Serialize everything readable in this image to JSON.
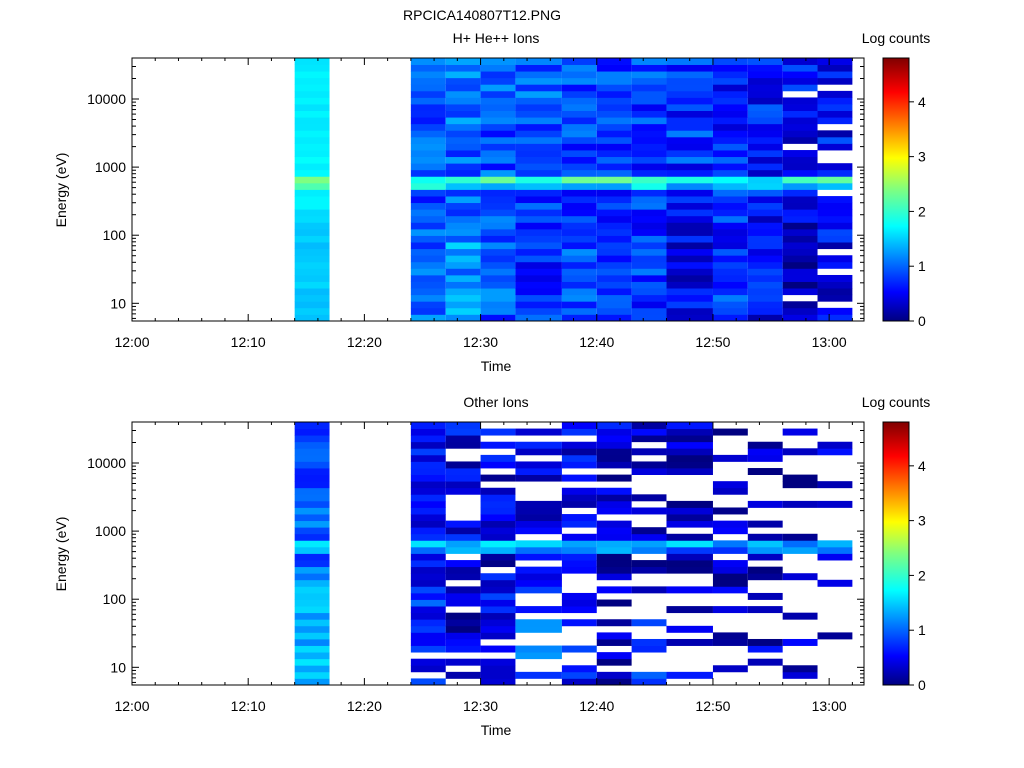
{
  "page": {
    "title": "RPCICA140807T12.PNG"
  },
  "chart_data": [
    {
      "type": "heatmap",
      "title": "H+ He++ Ions",
      "xlabel": "Time",
      "ylabel": "Energy (eV)",
      "colorbar_label": "Log counts",
      "x_scale": "time",
      "y_scale": "log",
      "xlim": [
        "12:00",
        "13:03"
      ],
      "ylim": [
        5.5,
        40000
      ],
      "x_ticks": [
        "12:00",
        "12:10",
        "12:20",
        "12:30",
        "12:40",
        "12:50",
        "13:00"
      ],
      "y_ticks": [
        "10",
        "100",
        "1000",
        "10000"
      ],
      "colorbar_range": [
        0,
        4.8
      ],
      "colorbar_ticks": [
        "0",
        "1",
        "2",
        "3",
        "4"
      ],
      "colormap": "jet",
      "missing_intervals": [
        [
          "12:00",
          "12:14"
        ],
        [
          "12:17",
          "12:24"
        ]
      ],
      "time_bins": [
        [
          "12:14",
          "12:17"
        ],
        [
          "12:24",
          "12:27"
        ],
        [
          "12:27",
          "12:30"
        ],
        [
          "12:30",
          "12:33"
        ],
        [
          "12:33",
          "12:37"
        ],
        [
          "12:37",
          "12:40"
        ],
        [
          "12:40",
          "12:43"
        ],
        [
          "12:43",
          "12:46"
        ],
        [
          "12:46",
          "12:50"
        ],
        [
          "12:50",
          "12:53"
        ],
        [
          "12:53",
          "12:56"
        ],
        [
          "12:56",
          "12:59"
        ],
        [
          "12:59",
          "13:02"
        ]
      ],
      "peak_energy_eV": 600,
      "bins": [
        {
          "time": "12:14",
          "lowE": 1.55,
          "midE": 1.75,
          "highE": 1.72,
          "peak": 2.65,
          "var": 0.08,
          "holes": 0.0
        },
        {
          "time": "12:24",
          "lowE": 1.05,
          "midE": 0.95,
          "highE": 1.1,
          "peak": 2.45,
          "var": 0.35,
          "holes": 0.0
        },
        {
          "time": "12:27",
          "lowE": 1.3,
          "midE": 1.05,
          "highE": 1.15,
          "peak": 2.5,
          "var": 0.35,
          "holes": 0.0
        },
        {
          "time": "12:30",
          "lowE": 1.0,
          "midE": 0.95,
          "highE": 1.05,
          "peak": 2.45,
          "var": 0.35,
          "holes": 0.0
        },
        {
          "time": "12:33",
          "lowE": 0.8,
          "midE": 0.9,
          "highE": 1.0,
          "peak": 2.45,
          "var": 0.35,
          "holes": 0.0
        },
        {
          "time": "12:37",
          "lowE": 0.95,
          "midE": 0.85,
          "highE": 0.95,
          "peak": 2.45,
          "var": 0.35,
          "holes": 0.0
        },
        {
          "time": "12:40",
          "lowE": 0.75,
          "midE": 0.85,
          "highE": 0.9,
          "peak": 2.45,
          "var": 0.35,
          "holes": 0.0
        },
        {
          "time": "12:43",
          "lowE": 0.85,
          "midE": 0.8,
          "highE": 0.9,
          "peak": 2.45,
          "var": 0.35,
          "holes": 0.0
        },
        {
          "time": "12:46",
          "lowE": 0.55,
          "midE": 0.8,
          "highE": 0.8,
          "peak": 2.4,
          "var": 0.4,
          "holes": 0.0
        },
        {
          "time": "12:50",
          "lowE": 0.8,
          "midE": 0.75,
          "highE": 0.75,
          "peak": 2.4,
          "var": 0.4,
          "holes": 0.0
        },
        {
          "time": "12:53",
          "lowE": 0.6,
          "midE": 0.65,
          "highE": 0.7,
          "peak": 2.35,
          "var": 0.4,
          "holes": 0.0
        },
        {
          "time": "12:56",
          "lowE": 0.3,
          "midE": 0.6,
          "highE": 0.6,
          "peak": 2.3,
          "var": 0.4,
          "holes": 0.08
        },
        {
          "time": "12:59",
          "lowE": 0.6,
          "midE": 0.55,
          "highE": 0.5,
          "peak": 2.3,
          "var": 0.45,
          "holes": 0.18
        }
      ]
    },
    {
      "type": "heatmap",
      "title": "Other Ions",
      "xlabel": "Time",
      "ylabel": "Energy (eV)",
      "colorbar_label": "Log counts",
      "x_scale": "time",
      "y_scale": "log",
      "xlim": [
        "12:00",
        "13:03"
      ],
      "ylim": [
        5.5,
        40000
      ],
      "x_ticks": [
        "12:00",
        "12:10",
        "12:20",
        "12:30",
        "12:40",
        "12:50",
        "13:00"
      ],
      "y_ticks": [
        "10",
        "100",
        "1000",
        "10000"
      ],
      "colorbar_range": [
        0,
        4.8
      ],
      "colorbar_ticks": [
        "0",
        "1",
        "2",
        "3",
        "4"
      ],
      "colormap": "jet",
      "missing_intervals": [
        [
          "12:00",
          "12:14"
        ],
        [
          "12:17",
          "12:24"
        ]
      ],
      "time_bins": [
        [
          "12:14",
          "12:17"
        ],
        [
          "12:24",
          "12:27"
        ],
        [
          "12:27",
          "12:30"
        ],
        [
          "12:30",
          "12:33"
        ],
        [
          "12:33",
          "12:37"
        ],
        [
          "12:37",
          "12:40"
        ],
        [
          "12:40",
          "12:43"
        ],
        [
          "12:43",
          "12:46"
        ],
        [
          "12:46",
          "12:50"
        ],
        [
          "12:50",
          "12:53"
        ],
        [
          "12:53",
          "12:56"
        ],
        [
          "12:56",
          "12:59"
        ],
        [
          "12:59",
          "13:02"
        ]
      ],
      "peak_energy_eV": 600,
      "bins": [
        {
          "time": "12:14",
          "lowE": 1.45,
          "midE": 1.05,
          "highE": 0.95,
          "peak": 2.2,
          "var": 0.3,
          "holes": 0.0
        },
        {
          "time": "12:24",
          "lowE": 0.75,
          "midE": 0.45,
          "highE": 0.55,
          "peak": 2.0,
          "var": 0.4,
          "holes": 0.22
        },
        {
          "time": "12:27",
          "lowE": 0.3,
          "midE": 0.45,
          "highE": 0.5,
          "peak": 2.0,
          "var": 0.4,
          "holes": 0.25
        },
        {
          "time": "12:30",
          "lowE": 0.65,
          "midE": 0.4,
          "highE": 0.45,
          "peak": 1.95,
          "var": 0.4,
          "holes": 0.22
        },
        {
          "time": "12:33",
          "lowE": 1.05,
          "midE": 0.45,
          "highE": 0.45,
          "peak": 1.95,
          "var": 0.4,
          "holes": 0.3
        },
        {
          "time": "12:37",
          "lowE": 0.7,
          "midE": 0.4,
          "highE": 0.45,
          "peak": 1.9,
          "var": 0.4,
          "holes": 0.3
        },
        {
          "time": "12:40",
          "lowE": 0.25,
          "midE": 0.35,
          "highE": 0.4,
          "peak": 1.85,
          "var": 0.4,
          "holes": 0.3
        },
        {
          "time": "12:43",
          "lowE": 0.7,
          "midE": 0.35,
          "highE": 0.4,
          "peak": 1.85,
          "var": 0.4,
          "holes": 0.3
        },
        {
          "time": "12:46",
          "lowE": 0.35,
          "midE": 0.3,
          "highE": 0.35,
          "peak": 1.8,
          "var": 0.4,
          "holes": 0.5
        },
        {
          "time": "12:50",
          "lowE": 0.3,
          "midE": 0.3,
          "highE": 0.35,
          "peak": 1.8,
          "var": 0.4,
          "holes": 0.55
        },
        {
          "time": "12:53",
          "lowE": 0.3,
          "midE": 0.3,
          "highE": 0.3,
          "peak": 1.75,
          "var": 0.4,
          "holes": 0.6
        },
        {
          "time": "12:56",
          "lowE": 0.3,
          "midE": 0.3,
          "highE": 0.3,
          "peak": 1.7,
          "var": 0.4,
          "holes": 0.6
        },
        {
          "time": "12:59",
          "lowE": 0.3,
          "midE": 0.3,
          "highE": 0.3,
          "peak": 1.7,
          "var": 0.4,
          "holes": 0.65
        }
      ]
    }
  ]
}
